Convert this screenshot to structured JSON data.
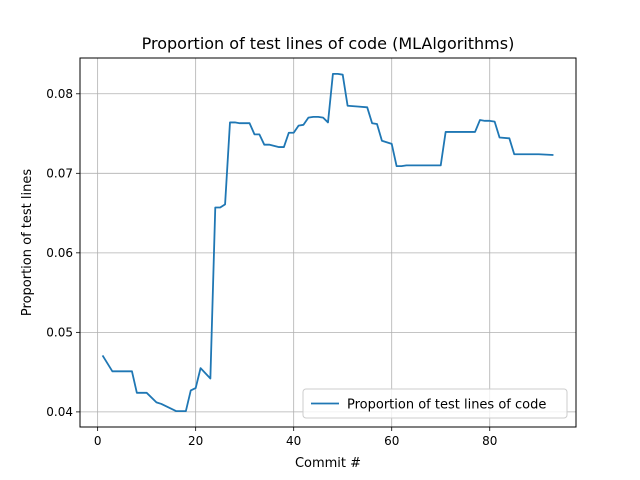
{
  "chart_data": {
    "type": "line",
    "title": "Proportion of test lines of code (MLAlgorithms)",
    "xlabel": "Commit #",
    "ylabel": "Proportion of test lines",
    "xlim": [
      -3.6,
      97.6
    ],
    "ylim": [
      0.0381,
      0.0845
    ],
    "xticks": [
      0,
      20,
      40,
      60,
      80
    ],
    "yticks": [
      0.04,
      0.05,
      0.06,
      0.07,
      0.08
    ],
    "ytick_labels": [
      "0.04",
      "0.05",
      "0.06",
      "0.07",
      "0.08"
    ],
    "grid": true,
    "legend_position": "lower right",
    "series": [
      {
        "name": "Proportion of test lines of code",
        "color": "#1f77b4",
        "x": [
          1,
          3,
          5,
          7,
          8,
          10,
          12,
          13,
          15,
          16,
          17,
          18,
          19,
          20,
          21,
          23,
          24,
          25,
          26,
          27,
          28,
          29,
          31,
          32,
          33,
          34,
          35,
          37,
          38,
          39,
          40,
          41,
          42,
          43,
          44,
          45,
          46,
          47,
          48,
          49,
          50,
          51,
          53,
          55,
          56,
          57,
          58,
          60,
          61,
          62,
          63,
          64,
          66,
          68,
          70,
          71,
          73,
          75,
          77,
          78,
          79,
          80,
          81,
          82,
          84,
          85,
          86,
          88,
          90,
          93
        ],
        "y": [
          0.0471,
          0.0451,
          0.0451,
          0.0451,
          0.0424,
          0.0424,
          0.0412,
          0.041,
          0.0404,
          0.0401,
          0.0401,
          0.0401,
          0.0427,
          0.043,
          0.0455,
          0.0442,
          0.0657,
          0.0657,
          0.0661,
          0.0764,
          0.0764,
          0.0763,
          0.0763,
          0.0749,
          0.0749,
          0.0736,
          0.0736,
          0.0733,
          0.0733,
          0.0751,
          0.0751,
          0.076,
          0.0761,
          0.077,
          0.0771,
          0.0771,
          0.077,
          0.0764,
          0.0825,
          0.0825,
          0.0824,
          0.0785,
          0.0784,
          0.0783,
          0.0763,
          0.0762,
          0.0741,
          0.0737,
          0.0709,
          0.0709,
          0.071,
          0.071,
          0.071,
          0.071,
          0.071,
          0.0752,
          0.0752,
          0.0752,
          0.0752,
          0.0767,
          0.0766,
          0.0766,
          0.0765,
          0.0745,
          0.0744,
          0.0724,
          0.0724,
          0.0724,
          0.0724,
          0.0723
        ]
      }
    ]
  }
}
